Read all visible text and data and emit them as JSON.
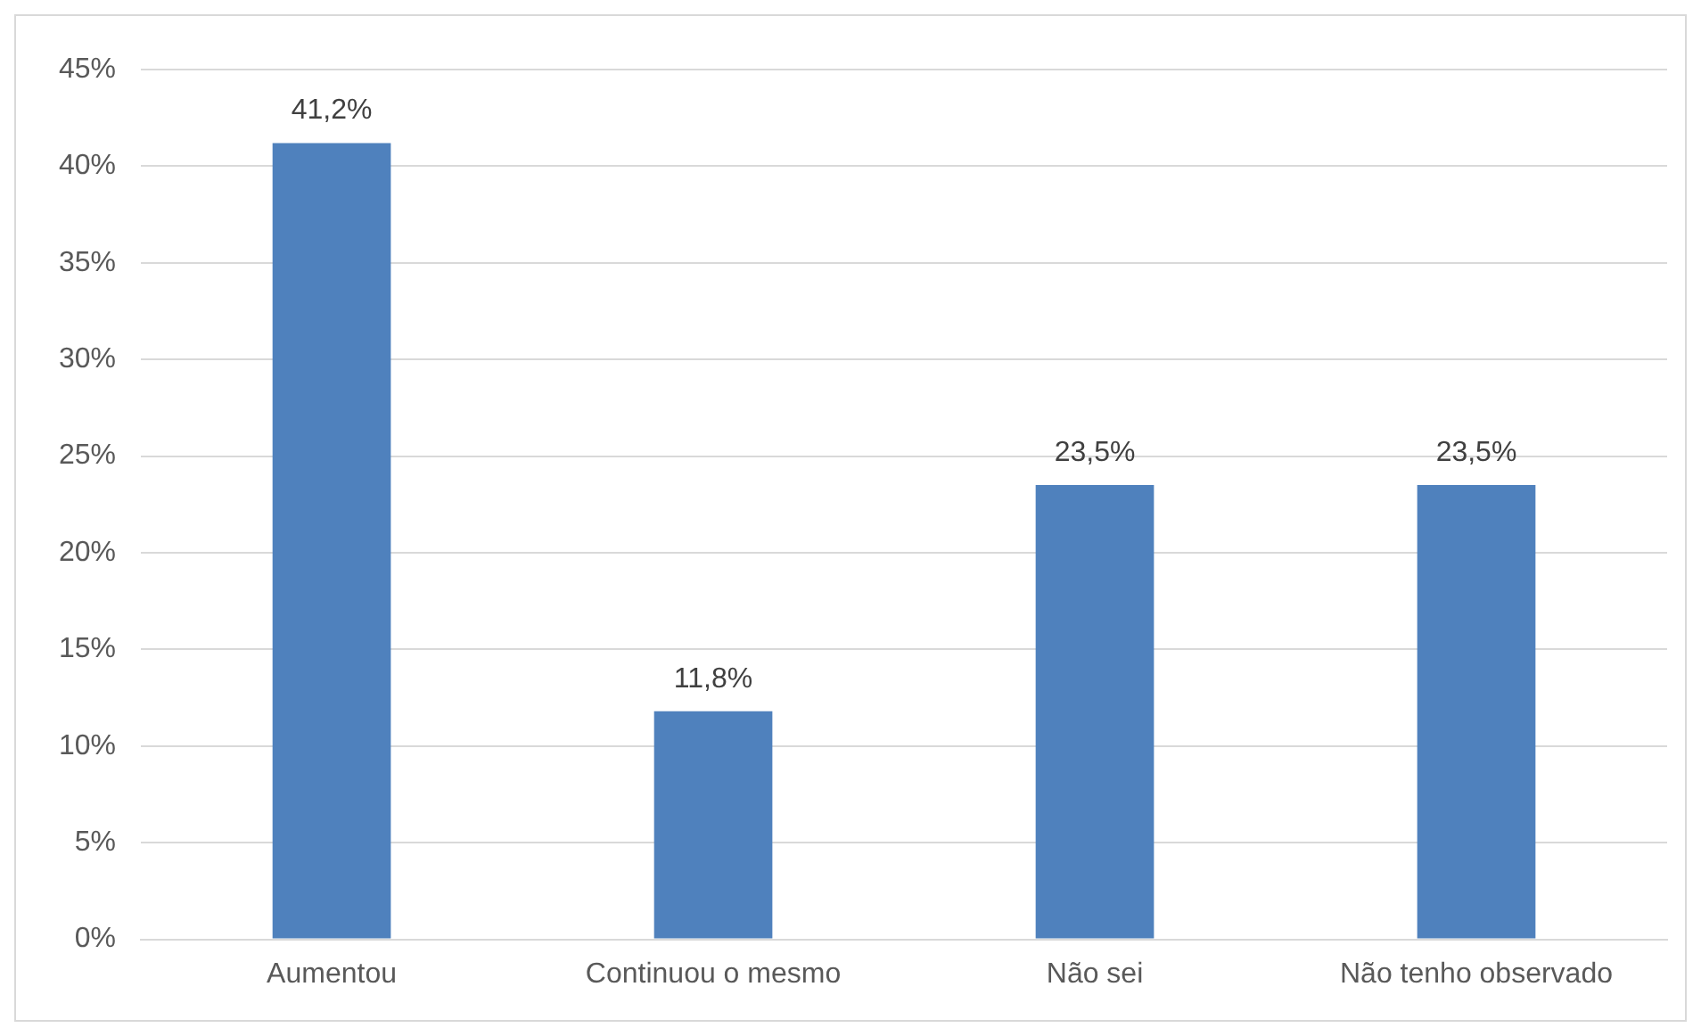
{
  "chart_data": {
    "type": "bar",
    "categories": [
      "Aumentou",
      "Continuou o mesmo",
      "Não sei",
      "Não tenho observado"
    ],
    "values": [
      41.2,
      11.8,
      23.5,
      23.5
    ],
    "value_labels": [
      "41,2%",
      "11,8%",
      "23,5%",
      "23,5%"
    ],
    "color": "#4f81bd",
    "ylim": [
      0,
      45
    ],
    "yticks": [
      {
        "value": 0,
        "label": "0%"
      },
      {
        "value": 5,
        "label": "5%"
      },
      {
        "value": 10,
        "label": "10%"
      },
      {
        "value": 15,
        "label": "15%"
      },
      {
        "value": 20,
        "label": "20%"
      },
      {
        "value": 25,
        "label": "25%"
      },
      {
        "value": 30,
        "label": "30%"
      },
      {
        "value": 35,
        "label": "35%"
      },
      {
        "value": 40,
        "label": "40%"
      },
      {
        "value": 45,
        "label": "45%"
      }
    ],
    "grid": "y",
    "legend": false
  }
}
